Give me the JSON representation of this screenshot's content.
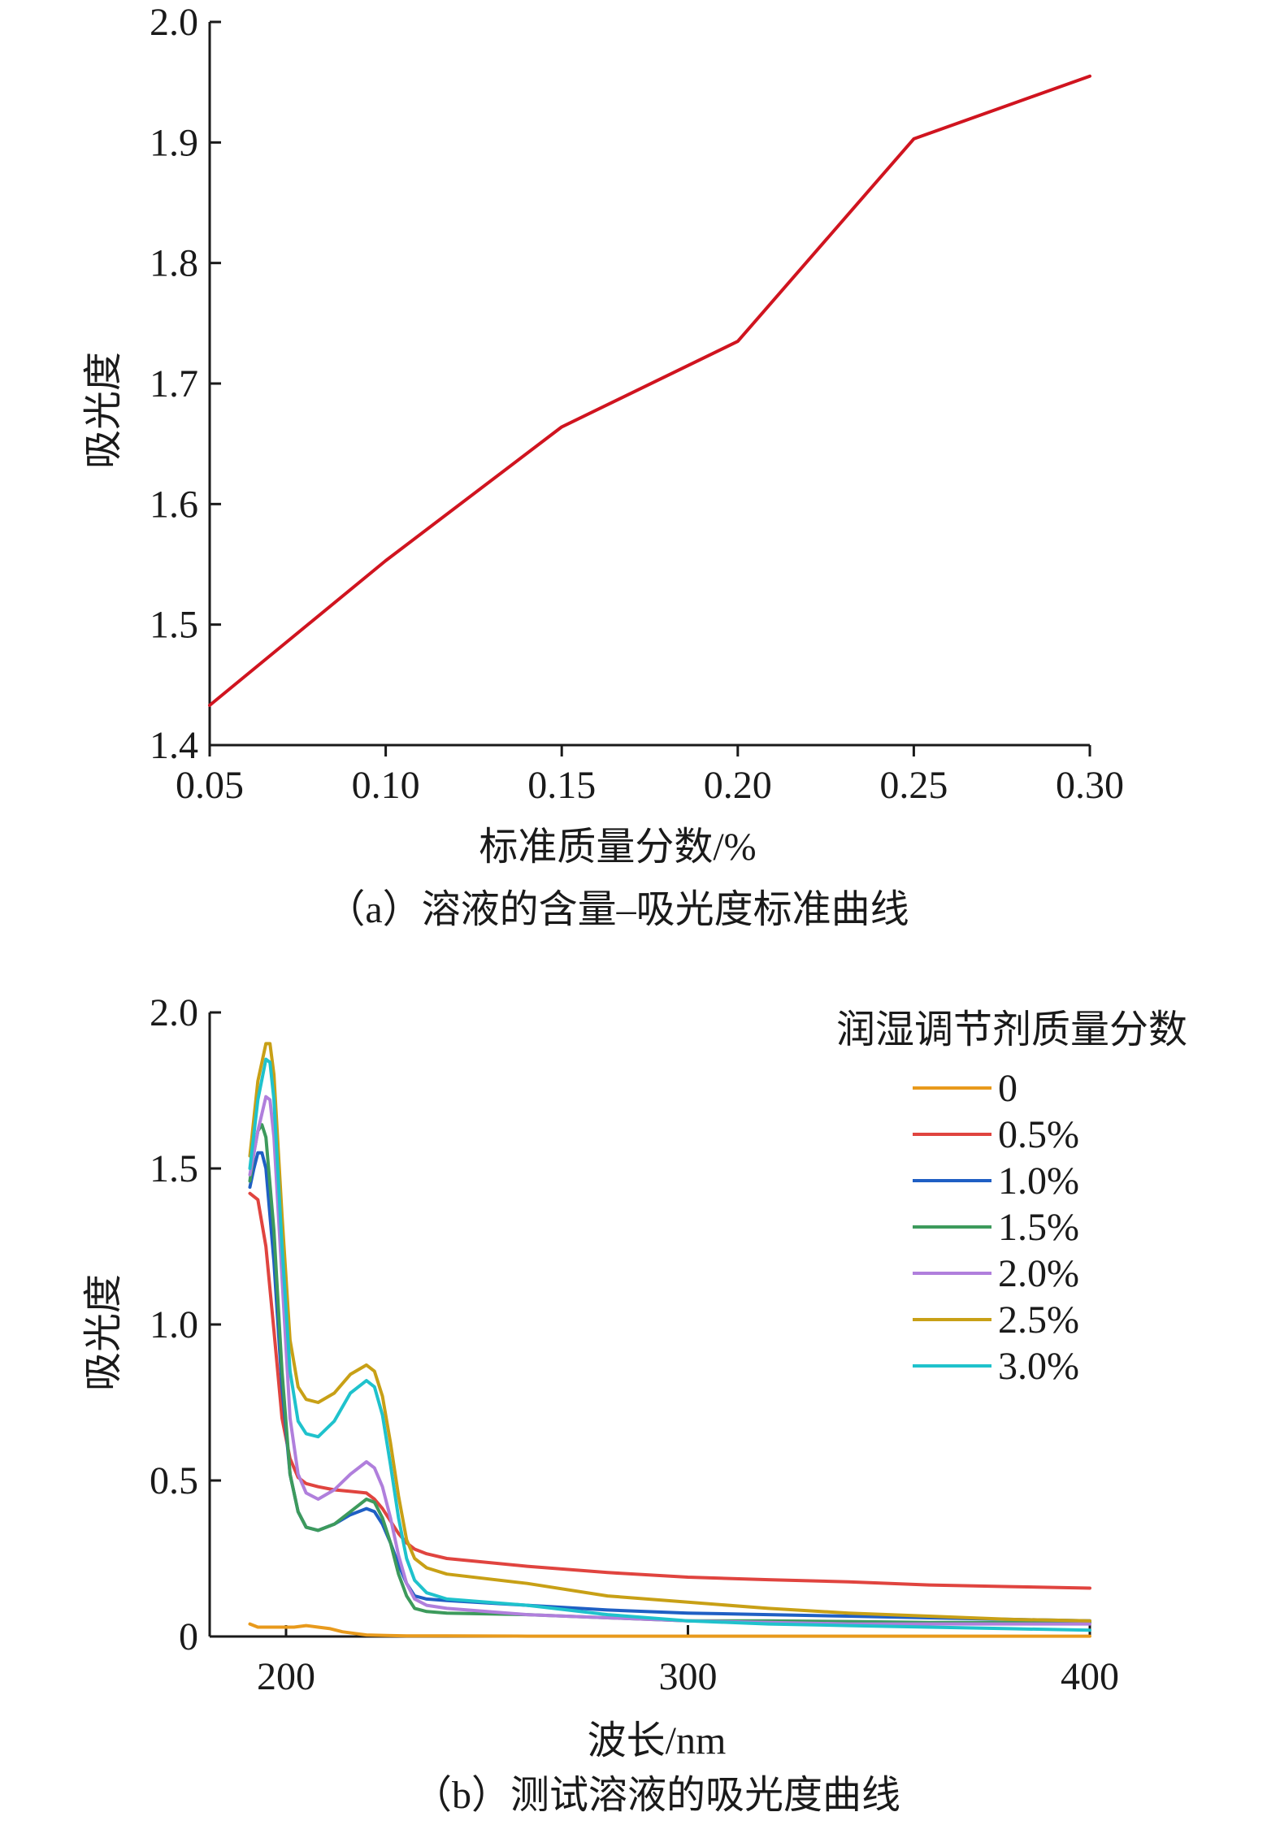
{
  "chart_data": [
    {
      "type": "line",
      "caption": "（a）溶液的含量–吸光度标准曲线",
      "xlabel": "标准质量分数/%",
      "ylabel": "吸光度",
      "xlim": [
        0.05,
        0.3
      ],
      "ylim": [
        1.4,
        2.0
      ],
      "x_ticks": [
        "0.05",
        "0.10",
        "0.15",
        "0.20",
        "0.25",
        "0.30"
      ],
      "y_ticks": [
        "1.4",
        "1.5",
        "1.6",
        "1.7",
        "1.8",
        "1.9",
        "2.0"
      ],
      "grid": false,
      "series": [
        {
          "color": "#d0141f",
          "x": [
            0.05,
            0.1,
            0.15,
            0.2,
            0.25,
            0.3
          ],
          "y": [
            1.433,
            1.553,
            1.664,
            1.735,
            1.903,
            1.955
          ]
        }
      ]
    },
    {
      "type": "line",
      "caption": "（b）测试溶液的吸光度曲线",
      "xlabel": "波长/nm",
      "ylabel": "吸光度",
      "xlim": [
        181,
        400
      ],
      "ylim": [
        0,
        2.0
      ],
      "x_ticks": [
        "200",
        "300",
        "400"
      ],
      "y_ticks": [
        "0",
        "0.5",
        "1.0",
        "1.5",
        "2.0"
      ],
      "grid": false,
      "legend_title": "润湿调节剂质量分数",
      "legend_position": "top-right",
      "series": [
        {
          "name": "0",
          "color": "#e89a1c",
          "x": [
            191,
            193,
            196,
            199,
            202,
            205,
            208,
            211,
            214,
            217,
            220,
            225,
            230,
            240,
            260,
            280,
            300,
            330,
            360,
            400
          ],
          "y": [
            0.04,
            0.03,
            0.03,
            0.03,
            0.03,
            0.035,
            0.03,
            0.025,
            0.015,
            0.01,
            0.005,
            0.003,
            0.002,
            0.002,
            0.001,
            0.001,
            0.001,
            0.001,
            0.001,
            0.001
          ]
        },
        {
          "name": "0.5%",
          "color": "#e0443f",
          "x": [
            191,
            193,
            195,
            197,
            199,
            201,
            203,
            205,
            208,
            212,
            216,
            220,
            222,
            224,
            226,
            228,
            230,
            232,
            235,
            240,
            260,
            280,
            300,
            320,
            340,
            360,
            380,
            400
          ],
          "y": [
            1.42,
            1.4,
            1.25,
            0.98,
            0.7,
            0.57,
            0.51,
            0.49,
            0.48,
            0.47,
            0.465,
            0.46,
            0.44,
            0.41,
            0.37,
            0.33,
            0.3,
            0.28,
            0.265,
            0.25,
            0.225,
            0.205,
            0.19,
            0.182,
            0.175,
            0.165,
            0.16,
            0.155
          ]
        },
        {
          "name": "1.0%",
          "color": "#1f5fc4",
          "x": [
            191,
            192,
            193,
            194,
            195,
            197,
            199,
            201,
            203,
            205,
            208,
            212,
            216,
            220,
            222,
            224,
            226,
            228,
            230,
            232,
            235,
            240,
            260,
            280,
            300,
            320,
            340,
            360,
            380,
            400
          ],
          "y": [
            1.44,
            1.5,
            1.55,
            1.55,
            1.5,
            1.2,
            0.8,
            0.52,
            0.4,
            0.35,
            0.34,
            0.36,
            0.39,
            0.41,
            0.4,
            0.36,
            0.3,
            0.23,
            0.17,
            0.13,
            0.12,
            0.115,
            0.1,
            0.085,
            0.075,
            0.07,
            0.065,
            0.06,
            0.055,
            0.05
          ]
        },
        {
          "name": "1.5%",
          "color": "#3d9a5c",
          "x": [
            191,
            192,
            193,
            194,
            195,
            197,
            199,
            201,
            203,
            205,
            208,
            212,
            216,
            220,
            222,
            224,
            226,
            228,
            230,
            232,
            235,
            240,
            260,
            280,
            300,
            320,
            340,
            360,
            380,
            400
          ],
          "y": [
            1.46,
            1.55,
            1.62,
            1.64,
            1.6,
            1.3,
            0.85,
            0.52,
            0.4,
            0.35,
            0.34,
            0.36,
            0.4,
            0.44,
            0.43,
            0.38,
            0.3,
            0.2,
            0.13,
            0.09,
            0.08,
            0.075,
            0.07,
            0.06,
            0.05,
            0.05,
            0.048,
            0.045,
            0.045,
            0.045
          ]
        },
        {
          "name": "2.0%",
          "color": "#b07fdc",
          "x": [
            191,
            193,
            195,
            196,
            197,
            199,
            201,
            203,
            205,
            208,
            212,
            216,
            220,
            222,
            224,
            226,
            228,
            230,
            232,
            235,
            240,
            260,
            280,
            300,
            320,
            340,
            360,
            380,
            400
          ],
          "y": [
            1.48,
            1.62,
            1.73,
            1.72,
            1.6,
            1.15,
            0.7,
            0.52,
            0.46,
            0.44,
            0.47,
            0.52,
            0.56,
            0.54,
            0.48,
            0.38,
            0.26,
            0.17,
            0.12,
            0.1,
            0.09,
            0.07,
            0.06,
            0.05,
            0.045,
            0.04,
            0.04,
            0.04,
            0.04
          ]
        },
        {
          "name": "2.5%",
          "color": "#c8a016",
          "x": [
            191,
            193,
            195,
            196,
            197,
            199,
            201,
            203,
            205,
            208,
            212,
            216,
            220,
            222,
            224,
            226,
            228,
            230,
            232,
            235,
            240,
            260,
            280,
            300,
            320,
            340,
            360,
            380,
            400
          ],
          "y": [
            1.54,
            1.78,
            1.9,
            1.9,
            1.8,
            1.35,
            0.95,
            0.8,
            0.76,
            0.75,
            0.78,
            0.84,
            0.87,
            0.85,
            0.77,
            0.62,
            0.45,
            0.31,
            0.25,
            0.22,
            0.2,
            0.17,
            0.13,
            0.11,
            0.09,
            0.075,
            0.065,
            0.055,
            0.05
          ]
        },
        {
          "name": "3.0%",
          "color": "#1fc2cc",
          "x": [
            191,
            193,
            195,
            196,
            197,
            199,
            201,
            203,
            205,
            208,
            212,
            216,
            220,
            222,
            224,
            226,
            228,
            230,
            232,
            235,
            240,
            260,
            280,
            300,
            320,
            340,
            360,
            380,
            400
          ],
          "y": [
            1.5,
            1.72,
            1.85,
            1.84,
            1.72,
            1.25,
            0.85,
            0.69,
            0.65,
            0.64,
            0.69,
            0.78,
            0.82,
            0.8,
            0.71,
            0.55,
            0.38,
            0.25,
            0.18,
            0.14,
            0.12,
            0.1,
            0.07,
            0.05,
            0.04,
            0.035,
            0.03,
            0.025,
            0.02
          ]
        }
      ]
    }
  ]
}
